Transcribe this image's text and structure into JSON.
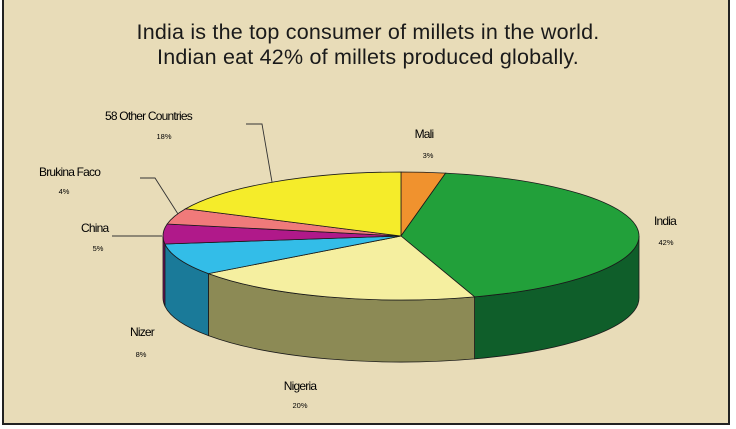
{
  "title": {
    "line1": "India is the top consumer of millets in the world.",
    "line2": "Indian eat 42% of millets produced globally."
  },
  "chart_data": {
    "type": "pie",
    "title": "India is the top consumer of millets in the world. Indian eat 42% of millets produced globally.",
    "categories": [
      "Mali",
      "India",
      "Nigeria",
      "Nizer",
      "China",
      "Brukina Faco",
      "58 Other Countries"
    ],
    "values": [
      3,
      42,
      20,
      8,
      5,
      4,
      18
    ],
    "value_labels": [
      "3%",
      "42%",
      "20%",
      "8%",
      "5%",
      "4%",
      "18%"
    ],
    "colors": {
      "Mali": "#f0922e",
      "India": "#22a03a",
      "Nigeria": "#f5efa0",
      "Nizer": "#33bde8",
      "China": "#b0198a",
      "Brukina Faco": "#f07a7a",
      "58 Other Countries": "#f5ec2a"
    },
    "side_colors": {
      "India": "#0f5e2a",
      "Nigeria": "#8c8a55",
      "Nizer": "#1a7a99",
      "China": "#751060",
      "Brukina Faco": "#a05050"
    },
    "style": "3d-pie",
    "legend": "none (direct labels)"
  }
}
